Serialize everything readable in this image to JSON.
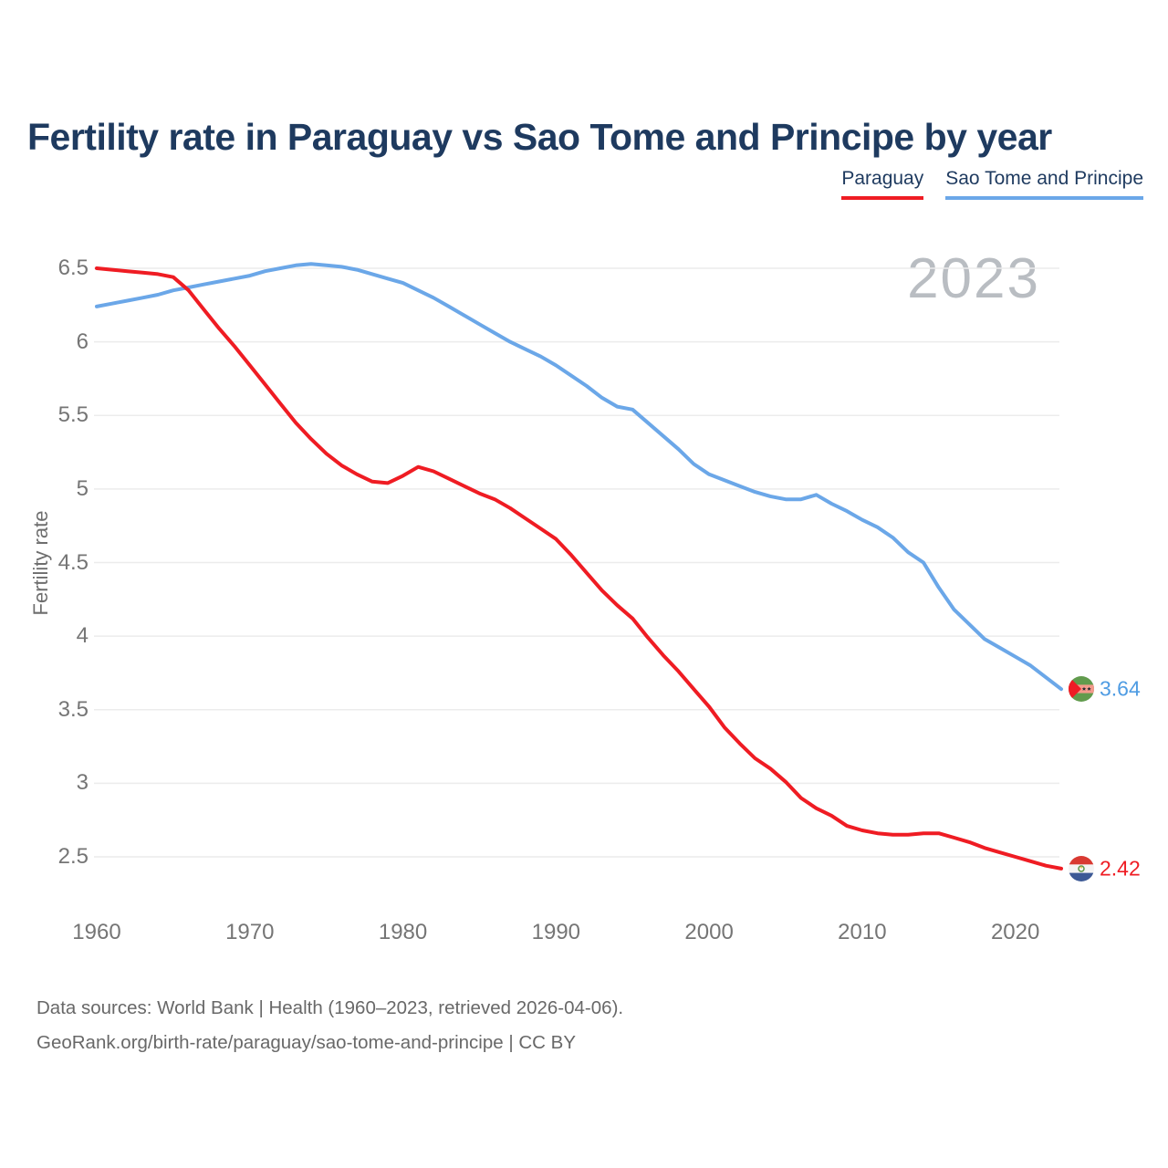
{
  "title": "Fertility rate in Paraguay vs Sao Tome and Principe by year",
  "watermark": "2023",
  "legend": [
    {
      "label": "Paraguay",
      "color": "#ef1c23"
    },
    {
      "label": "Sao Tome and Principe",
      "color": "#6ba7e8"
    }
  ],
  "end_labels": {
    "sao_tome": "3.64",
    "paraguay": "2.42"
  },
  "footer": {
    "line1": "Data sources: World Bank | Health (1960–2023, retrieved 2026-04-06).",
    "line2": "GeoRank.org/birth-rate/paraguay/sao-tome-and-principe | CC BY"
  },
  "colors": {
    "paraguay_line": "#ef1c23",
    "sao_tome_line": "#6ba7e8",
    "title_text": "#1e3a5f",
    "grid": "#ececec",
    "tick_text": "#757575",
    "watermark_text": "#b9bdc2",
    "footer_text": "#686868"
  },
  "chart_data": {
    "type": "line",
    "title": "Fertility rate in Paraguay vs Sao Tome and Principe by year",
    "xlabel": "",
    "ylabel": "Fertility rate",
    "ylim": [
      2.5,
      6.5
    ],
    "x_ticks": [
      1960,
      1970,
      1980,
      1990,
      2000,
      2010,
      2020
    ],
    "y_ticks": [
      6.5,
      6,
      5.5,
      5,
      4.5,
      4,
      3.5,
      3,
      2.5
    ],
    "grid": "horizontal",
    "legend_position": "top-right",
    "x": [
      1960,
      1961,
      1962,
      1963,
      1964,
      1965,
      1966,
      1967,
      1968,
      1969,
      1970,
      1971,
      1972,
      1973,
      1974,
      1975,
      1976,
      1977,
      1978,
      1979,
      1980,
      1981,
      1982,
      1983,
      1984,
      1985,
      1986,
      1987,
      1988,
      1989,
      1990,
      1991,
      1992,
      1993,
      1994,
      1995,
      1996,
      1997,
      1998,
      1999,
      2000,
      2001,
      2002,
      2003,
      2004,
      2005,
      2006,
      2007,
      2008,
      2009,
      2010,
      2011,
      2012,
      2013,
      2014,
      2015,
      2016,
      2017,
      2018,
      2019,
      2020,
      2021,
      2022,
      2023
    ],
    "series": [
      {
        "name": "Paraguay",
        "color": "#ef1c23",
        "end_label": "2.42",
        "values": [
          6.5,
          6.49,
          6.48,
          6.47,
          6.46,
          6.44,
          6.35,
          6.22,
          6.09,
          5.97,
          5.84,
          5.71,
          5.58,
          5.45,
          5.34,
          5.24,
          5.16,
          5.1,
          5.05,
          5.04,
          5.09,
          5.15,
          5.12,
          5.07,
          5.02,
          4.97,
          4.93,
          4.87,
          4.8,
          4.73,
          4.66,
          4.55,
          4.43,
          4.31,
          4.21,
          4.12,
          3.99,
          3.87,
          3.76,
          3.64,
          3.52,
          3.38,
          3.27,
          3.17,
          3.1,
          3.01,
          2.9,
          2.83,
          2.78,
          2.71,
          2.68,
          2.66,
          2.65,
          2.65,
          2.66,
          2.66,
          2.63,
          2.6,
          2.56,
          2.53,
          2.5,
          2.47,
          2.44,
          2.42
        ]
      },
      {
        "name": "Sao Tome and Principe",
        "color": "#6ba7e8",
        "end_label": "3.64",
        "values": [
          6.24,
          6.26,
          6.28,
          6.3,
          6.32,
          6.35,
          6.37,
          6.39,
          6.41,
          6.43,
          6.45,
          6.48,
          6.5,
          6.52,
          6.53,
          6.52,
          6.51,
          6.49,
          6.46,
          6.43,
          6.4,
          6.35,
          6.3,
          6.24,
          6.18,
          6.12,
          6.06,
          6.0,
          5.95,
          5.9,
          5.84,
          5.77,
          5.7,
          5.62,
          5.56,
          5.54,
          5.45,
          5.36,
          5.27,
          5.17,
          5.1,
          5.06,
          5.02,
          4.98,
          4.95,
          4.93,
          4.93,
          4.96,
          4.9,
          4.85,
          4.79,
          4.74,
          4.67,
          4.57,
          4.5,
          4.33,
          4.18,
          4.08,
          3.98,
          3.92,
          3.86,
          3.8,
          3.72,
          3.64
        ]
      }
    ]
  }
}
